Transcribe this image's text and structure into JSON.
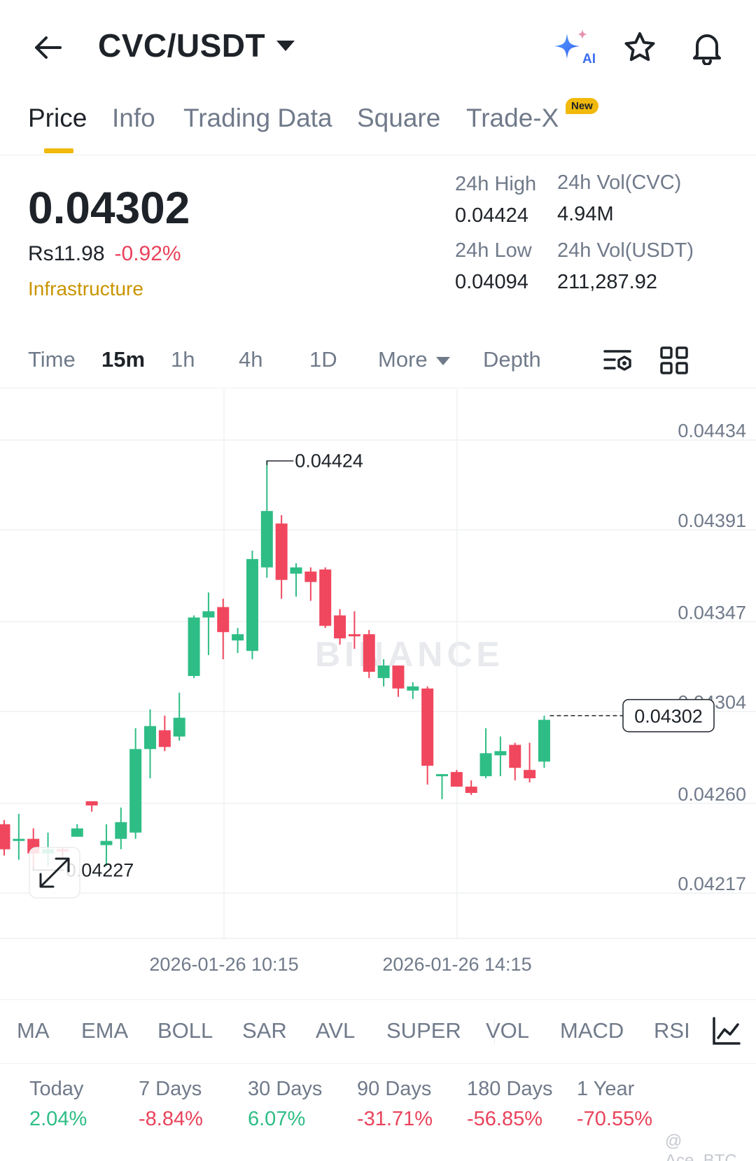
{
  "header": {
    "pair": "CVC/USDT",
    "ai_label": "AI"
  },
  "tabs": [
    {
      "label": "Price",
      "active": true
    },
    {
      "label": "Info"
    },
    {
      "label": "Trading Data"
    },
    {
      "label": "Square"
    },
    {
      "label": "Trade-X",
      "badge": "New"
    }
  ],
  "price": {
    "last": "0.04302",
    "fiat": "Rs11.98",
    "change": "-0.92%",
    "tag": "Infrastructure"
  },
  "stats": {
    "high_label": "24h High",
    "high": "0.04424",
    "vol_base_label": "24h Vol(CVC)",
    "vol_base": "4.94M",
    "low_label": "24h Low",
    "low": "0.04094",
    "vol_quote_label": "24h Vol(USDT)",
    "vol_quote": "211,287.92"
  },
  "intervals": {
    "items": [
      "Time",
      "15m",
      "1h",
      "4h",
      "1D"
    ],
    "active": "15m",
    "more": "More",
    "depth": "Depth"
  },
  "chart_data": {
    "type": "candlestick",
    "y_ticks": [
      "0.04434",
      "0.04391",
      "0.04347",
      "0.04304",
      "0.04260",
      "0.04217"
    ],
    "ylim": [
      0.04202,
      0.0445
    ],
    "x_ticks": [
      "2026-01-26 10:15",
      "2026-01-26 14:15"
    ],
    "max_label": "0.04424",
    "min_label": "0.04227",
    "current_label": "0.04302",
    "current_value": 0.04302,
    "watermark": "BINANCE",
    "colors": {
      "up": "#2ebd85",
      "down": "#f0475e"
    },
    "candles": [
      [
        0.0425,
        0.04252,
        0.04235,
        0.04238
      ],
      [
        0.04242,
        0.04255,
        0.04233,
        0.04243
      ],
      [
        0.04243,
        0.04248,
        0.04228,
        0.04236
      ],
      [
        0.04236,
        0.04246,
        0.0423,
        0.04238
      ],
      [
        0.04238,
        0.04239,
        0.04233,
        0.04237
      ],
      [
        0.04244,
        0.0425,
        0.04244,
        0.04248
      ],
      [
        0.04261,
        0.04261,
        0.04256,
        0.04259
      ],
      [
        0.0424,
        0.0425,
        0.0423,
        0.04242
      ],
      [
        0.04243,
        0.04258,
        0.04238,
        0.04251
      ],
      [
        0.04246,
        0.04296,
        0.04243,
        0.04286
      ],
      [
        0.04286,
        0.04305,
        0.04272,
        0.04297
      ],
      [
        0.04295,
        0.04302,
        0.04285,
        0.04287
      ],
      [
        0.04292,
        0.04313,
        0.0429,
        0.04301
      ],
      [
        0.04321,
        0.0435,
        0.0432,
        0.04349
      ],
      [
        0.04349,
        0.04361,
        0.04331,
        0.04352
      ],
      [
        0.04354,
        0.04358,
        0.04329,
        0.04342
      ],
      [
        0.04338,
        0.04344,
        0.04332,
        0.04341
      ],
      [
        0.04333,
        0.04381,
        0.04329,
        0.04377
      ],
      [
        0.04373,
        0.04424,
        0.04368,
        0.044
      ],
      [
        0.04394,
        0.04398,
        0.04358,
        0.04367
      ],
      [
        0.0437,
        0.04375,
        0.04359,
        0.04373
      ],
      [
        0.04371,
        0.04373,
        0.04357,
        0.04366
      ],
      [
        0.04372,
        0.04373,
        0.04344,
        0.04345
      ],
      [
        0.0435,
        0.04353,
        0.04336,
        0.04339
      ],
      [
        0.04341,
        0.04352,
        0.04334,
        0.0434
      ],
      [
        0.04341,
        0.04343,
        0.0432,
        0.04323
      ],
      [
        0.0432,
        0.04329,
        0.04316,
        0.04326
      ],
      [
        0.04326,
        0.04326,
        0.04311,
        0.04315
      ],
      [
        0.04314,
        0.04318,
        0.0431,
        0.04316
      ],
      [
        0.04315,
        0.04316,
        0.04269,
        0.04278
      ],
      [
        0.04273,
        0.04274,
        0.04262,
        0.04274
      ],
      [
        0.04275,
        0.04276,
        0.04268,
        0.04268
      ],
      [
        0.04268,
        0.04271,
        0.04264,
        0.04265
      ],
      [
        0.04273,
        0.04296,
        0.04272,
        0.04284
      ],
      [
        0.04283,
        0.04292,
        0.04273,
        0.04285
      ],
      [
        0.04288,
        0.04289,
        0.04271,
        0.04277
      ],
      [
        0.04276,
        0.04289,
        0.0427,
        0.04272
      ],
      [
        0.0428,
        0.04302,
        0.04277,
        0.043
      ]
    ]
  },
  "indicators": [
    "MA",
    "EMA",
    "BOLL",
    "SAR",
    "AVL",
    "SUPER",
    "VOL",
    "MACD",
    "RSI"
  ],
  "performance": [
    {
      "label": "Today",
      "value": "2.04%",
      "dir": "up"
    },
    {
      "label": "7 Days",
      "value": "-8.84%",
      "dir": "down"
    },
    {
      "label": "30 Days",
      "value": "6.07%",
      "dir": "up"
    },
    {
      "label": "90 Days",
      "value": "-31.71%",
      "dir": "down"
    },
    {
      "label": "180 Days",
      "value": "-56.85%",
      "dir": "down"
    },
    {
      "label": "1 Year",
      "value": "-70.55%",
      "dir": "down"
    }
  ],
  "credit": "@ Ace_BTC"
}
